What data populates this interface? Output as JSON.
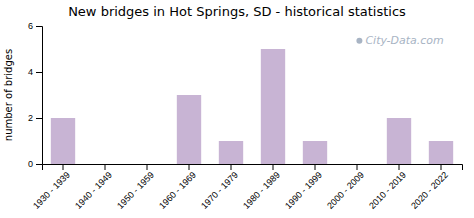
{
  "chart_data": {
    "type": "bar",
    "title": "New bridges in Hot Springs, SD - historical statistics",
    "ylabel": "number of bridges",
    "categories": [
      "1930 - 1939",
      "1940 - 1949",
      "1950 - 1959",
      "1960 - 1969",
      "1970 - 1979",
      "1980 - 1989",
      "1990 - 1999",
      "2000 - 2009",
      "2010 - 2019",
      "2020 - 2022"
    ],
    "values": [
      2,
      0,
      0,
      3,
      1,
      5,
      1,
      0,
      2,
      1
    ],
    "color": "#c8b4d4",
    "ylim": [
      0,
      6
    ],
    "yticks": [
      0,
      2,
      4,
      6
    ],
    "grid": false,
    "annotations": [
      "City-Data.com"
    ]
  }
}
